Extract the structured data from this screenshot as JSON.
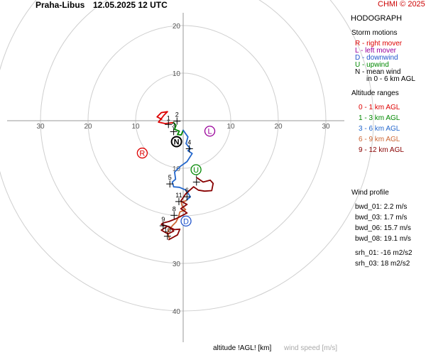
{
  "header": {
    "station": "Praha-Libus",
    "datetime": "12.05.2025 12 UTC",
    "credit": "CHMI © 2025"
  },
  "panel": {
    "title": "HODOGRAPH",
    "storm_motions_heading": "Storm motions",
    "storm_motions": [
      {
        "code": "R",
        "label": "R - right mover",
        "color": "#dd0000"
      },
      {
        "code": "L",
        "label": "L - left mover",
        "color": "#990099"
      },
      {
        "code": "D",
        "label": "D - downwind",
        "color": "#2255cc"
      },
      {
        "code": "U",
        "label": "U - upwind",
        "color": "#008800"
      },
      {
        "code": "N",
        "label": "N - mean wind",
        "color": "#000000"
      }
    ],
    "mean_wind_note": "in 0 - 6 km AGL",
    "altitude_heading": "Altitude ranges",
    "altitude_ranges": [
      {
        "label": "0 - 1 km AGL",
        "color": "#dd0000"
      },
      {
        "label": "1 - 3 km AGL",
        "color": "#008800"
      },
      {
        "label": "3 - 6 km AGL",
        "color": "#2266cc"
      },
      {
        "label": "6 - 9 km AGL",
        "color": "#cc6633"
      },
      {
        "label": "9 - 12 km AGL",
        "color": "#880000"
      }
    ],
    "wind_profile_heading": "Wind profile",
    "wind_profile": [
      "bwd_01: 2.2 m/s",
      "bwd_03: 1.7 m/s",
      "bwd_06: 15.7 m/s",
      "bwd_08: 19.1 m/s",
      "srh_01: -16 m2/s2",
      "srh_03: 18 m2/s2"
    ]
  },
  "footer": {
    "altitude_label": "altitude !AGL! [km]",
    "speed_label": "wind speed [m/s]"
  },
  "chart_data": {
    "type": "hodograph",
    "rings": [
      10,
      20,
      30,
      40
    ],
    "x_ticks": [
      -30,
      -20,
      -10,
      10,
      20,
      30
    ],
    "y_ticks": [
      20,
      10,
      -10,
      -30,
      -40
    ],
    "x_tick_labels": [
      "30",
      "20",
      "10",
      "10",
      "20",
      "30"
    ],
    "y_tick_labels": [
      "20",
      "10",
      "10",
      "30",
      "40"
    ],
    "series": [
      {
        "color": "#dd0000",
        "points": [
          [
            -4.5,
            0.3
          ],
          [
            -5.5,
            0.8
          ],
          [
            -4.6,
            1.7
          ],
          [
            -3.3,
            1.9
          ],
          [
            -4.0,
            1.2
          ],
          [
            -5.2,
            -0.3
          ],
          [
            -3.8,
            -0.6
          ],
          [
            -2.0,
            -0.4
          ]
        ]
      },
      {
        "color": "#008800",
        "points": [
          [
            -2.0,
            -0.4
          ],
          [
            -1.5,
            -1.0
          ],
          [
            -1.8,
            -1.8
          ],
          [
            -0.8,
            -2.2
          ],
          [
            -1.2,
            -2.9
          ],
          [
            -0.4,
            -3.0
          ],
          [
            0.0,
            -2.0
          ]
        ]
      },
      {
        "color": "#2266cc",
        "points": [
          [
            0.0,
            -2.0
          ],
          [
            1.0,
            -3.4
          ],
          [
            0.6,
            -4.8
          ],
          [
            1.5,
            -5.9
          ],
          [
            1.0,
            -6.3
          ],
          [
            1.9,
            -6.9
          ],
          [
            0.8,
            -8.6
          ],
          [
            -0.6,
            -9.6
          ],
          [
            -1.8,
            -10.8
          ],
          [
            -1.6,
            -12.3
          ],
          [
            -2.3,
            -12.9
          ],
          [
            -2.0,
            -13.9
          ],
          [
            -0.8,
            -14.0
          ],
          [
            0.6,
            -14.6
          ],
          [
            1.5,
            -16.0
          ],
          [
            0.6,
            -16.8
          ]
        ]
      },
      {
        "color": "#cc6633",
        "points": [
          [
            0.6,
            -16.8
          ],
          [
            -0.4,
            -17.2
          ],
          [
            -0.2,
            -18.0
          ],
          [
            0.5,
            -18.7
          ],
          [
            -0.7,
            -19.2
          ],
          [
            -1.0,
            -20.3
          ],
          [
            -1.5,
            -21.3
          ],
          [
            -2.2,
            -22.0
          ],
          [
            -2.8,
            -22.7
          ],
          [
            -3.3,
            -23.5
          ],
          [
            -2.9,
            -24.7
          ]
        ]
      },
      {
        "color": "#880000",
        "points": [
          [
            2.9,
            -12.0
          ],
          [
            4.2,
            -12.9
          ],
          [
            5.7,
            -12.5
          ],
          [
            6.3,
            -13.2
          ],
          [
            6.0,
            -14.7
          ],
          [
            4.5,
            -14.8
          ],
          [
            3.2,
            -14.6
          ],
          [
            2.2,
            -13.9
          ],
          [
            0.5,
            -15.4
          ],
          [
            -0.5,
            -16.9
          ],
          [
            0.8,
            -17.6
          ],
          [
            -0.5,
            -18.5
          ],
          [
            0.8,
            -19.4
          ],
          [
            -0.7,
            -20.2
          ],
          [
            -1.5,
            -20.6
          ],
          [
            -3.0,
            -21.2
          ],
          [
            -4.3,
            -21.5
          ],
          [
            -4.6,
            -21.8
          ],
          [
            -2.9,
            -22.3
          ],
          [
            -2.0,
            -23.2
          ],
          [
            -3.2,
            -23.8
          ],
          [
            -4.6,
            -23.0
          ],
          [
            -3.3,
            -22.2
          ],
          [
            -1.8,
            -22.9
          ],
          [
            -0.7,
            -22.8
          ],
          [
            -1.2,
            -24.0
          ],
          [
            -3.0,
            -25.0
          ]
        ]
      }
    ],
    "height_labels": [
      {
        "text": "1",
        "u": -3.1,
        "v": 0.1
      },
      {
        "text": "2",
        "u": -1.3,
        "v": 0.8
      },
      {
        "text": "3",
        "u": -2.0,
        "v": -1.4
      },
      {
        "text": "4",
        "u": 1.3,
        "v": -5.0
      },
      {
        "text": "5",
        "u": -2.8,
        "v": -12.4
      },
      {
        "text": "6",
        "u": 0.8,
        "v": -15.1
      },
      {
        "text": "7",
        "u": 2.8,
        "v": -12.0
      },
      {
        "text": "8",
        "u": -1.9,
        "v": -19.0
      },
      {
        "text": "9",
        "u": -4.2,
        "v": -21.2
      },
      {
        "text": "10",
        "u": -3.3,
        "v": -23.4
      },
      {
        "text": "11",
        "u": -0.9,
        "v": -16.1
      }
    ],
    "storm_markers": [
      {
        "code": "R",
        "u": -8.6,
        "v": -6.8,
        "color": "#dd0000"
      },
      {
        "code": "L",
        "u": 5.6,
        "v": -2.2,
        "color": "#990099"
      },
      {
        "code": "N",
        "u": -1.4,
        "v": -4.4,
        "color": "#000000"
      },
      {
        "code": "U",
        "u": 2.7,
        "v": -10.3,
        "color": "#008800"
      },
      {
        "code": "D",
        "u": 0.6,
        "v": -21.1,
        "color": "#2255cc"
      }
    ]
  }
}
